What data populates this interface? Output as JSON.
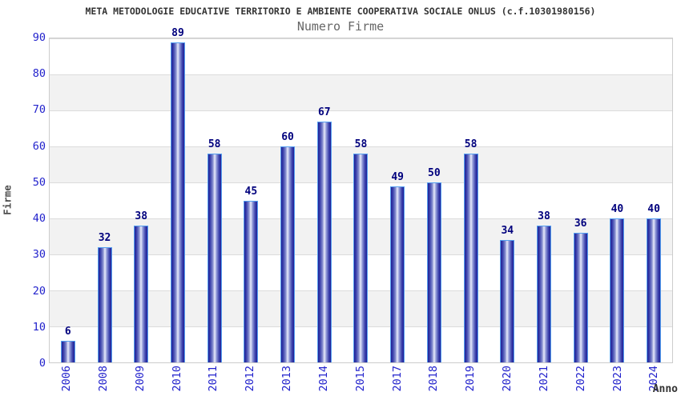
{
  "title": "META METODOLOGIE EDUCATIVE TERRITORIO E AMBIENTE COOPERATIVA SOCIALE ONLUS (c.f.10301980156)",
  "subtitle": "Numero Firme",
  "chart_data": {
    "type": "bar",
    "title": "META METODOLOGIE EDUCATIVE TERRITORIO E AMBIENTE COOPERATIVA SOCIALE ONLUS (c.f.10301980156)",
    "subtitle": "Numero Firme",
    "categories": [
      "2006",
      "2008",
      "2009",
      "2010",
      "2011",
      "2012",
      "2013",
      "2014",
      "2015",
      "2017",
      "2018",
      "2019",
      "2020",
      "2021",
      "2022",
      "2023",
      "2024"
    ],
    "values": [
      6,
      32,
      38,
      89,
      58,
      45,
      60,
      67,
      58,
      49,
      50,
      58,
      34,
      38,
      36,
      40,
      40
    ],
    "xlabel": "Anno",
    "ylabel": "Firme",
    "ylim": [
      0,
      90
    ],
    "ytick_step": 10,
    "yticks": [
      0,
      10,
      20,
      30,
      40,
      50,
      60,
      70,
      80,
      90
    ],
    "grid": "horizontal gridlines with alternating background bands",
    "legend": "none",
    "bar_labels_shown": true,
    "colors": {
      "bar_dark": "#1f1f96",
      "bar_highlight": "#e9ecfb",
      "bar_border": "#55a0f0",
      "tick_label": "#2222cc",
      "value_label": "#00007d",
      "title_text": "#333333",
      "subtitle_text": "#666666",
      "axis_title_text": "#4d4d4d",
      "band_gray": "#f2f2f2",
      "grid_line": "#dcdcdc",
      "plot_border": "#cccccc"
    }
  }
}
